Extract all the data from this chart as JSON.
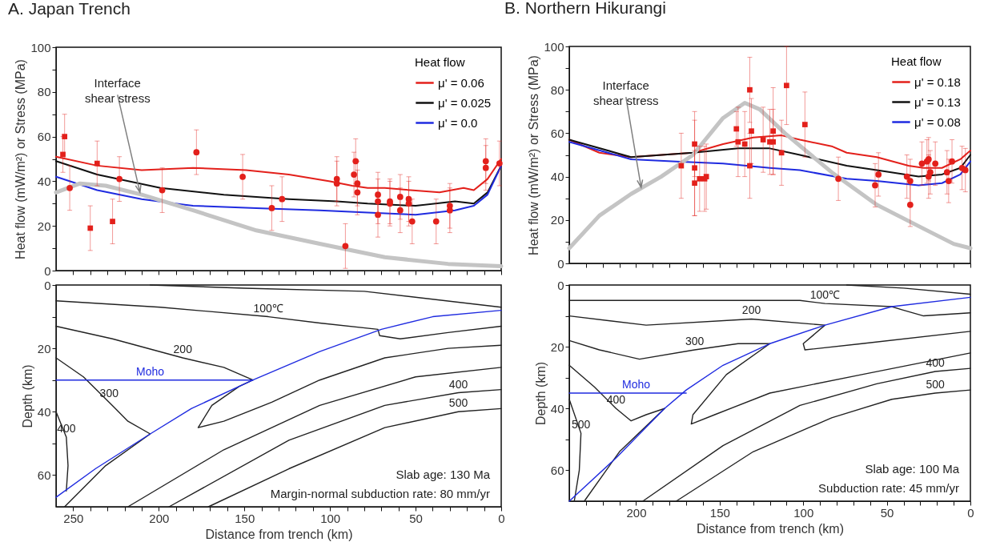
{
  "chart_data": [
    {
      "type": "line",
      "title": "A. Japan Trench",
      "ylabel": "Heat flow (mW/m²) or Stress (MPa)",
      "legend_title": "Heat flow",
      "legend": "top right",
      "tick_labels": "y",
      "xlim": [
        260,
        0
      ],
      "ylim": [
        0,
        100
      ],
      "xticks": [
        250,
        {
          "value": 240,
          "label": null
        },
        {
          "value": 230,
          "label": null
        },
        {
          "value": 220,
          "label": null
        },
        {
          "value": 210,
          "label": null
        },
        200,
        {
          "value": 190,
          "label": null
        },
        {
          "value": 180,
          "label": null
        },
        {
          "value": 170,
          "label": null
        },
        {
          "value": 160,
          "label": null
        },
        150,
        {
          "value": 140,
          "label": null
        },
        {
          "value": 130,
          "label": null
        },
        {
          "value": 120,
          "label": null
        },
        {
          "value": 110,
          "label": null
        },
        100,
        {
          "value": 90,
          "label": null
        },
        {
          "value": 80,
          "label": null
        },
        {
          "value": 70,
          "label": null
        },
        {
          "value": 60,
          "label": null
        },
        50,
        {
          "value": 40,
          "label": null
        },
        {
          "value": 30,
          "label": null
        },
        {
          "value": 20,
          "label": null
        },
        {
          "value": 10,
          "label": null
        },
        0
      ],
      "yticks": [
        0,
        {
          "value": 10,
          "label": null
        },
        20,
        {
          "value": 30,
          "label": null
        },
        40,
        {
          "value": 50,
          "label": null
        },
        60,
        {
          "value": 70,
          "label": null
        },
        80,
        {
          "value": 90,
          "label": null
        },
        100
      ],
      "annotations": [
        {
          "text": "Interface\nshear stress",
          "x": 211,
          "y": 35
        }
      ],
      "series": [
        {
          "name": "μ' = 0.06",
          "color": "#e3201b",
          "x": [
            260,
            236,
            210,
            180,
            149,
            124,
            100,
            87,
            78,
            68,
            53,
            36,
            22,
            16,
            8,
            0
          ],
          "values": [
            51,
            47,
            45,
            46,
            45,
            43,
            40,
            38,
            37,
            37,
            36,
            35,
            37,
            36,
            41,
            50
          ]
        },
        {
          "name": "μ' = 0.025",
          "color": "#111111",
          "x": [
            260,
            236,
            199,
            162,
            124,
            96,
            78,
            50,
            27,
            16,
            8,
            0
          ],
          "values": [
            49,
            43,
            37,
            34,
            32,
            31,
            30,
            29,
            31,
            30,
            35,
            47
          ]
        },
        {
          "name": "μ' = 0.0",
          "color": "#1f2be0",
          "x": [
            260,
            236,
            210,
            180,
            143,
            106,
            78,
            50,
            27,
            16,
            8,
            0
          ],
          "values": [
            42,
            36,
            32,
            29,
            28,
            27,
            26,
            25,
            27,
            29,
            34,
            47
          ]
        },
        {
          "color": "#c4c4c4",
          "x": [
            260,
            246,
            231,
            210,
            180,
            143,
            106,
            68,
            31,
            0
          ],
          "values": [
            35,
            39,
            38,
            34,
            27,
            18,
            12,
            6,
            3,
            2
          ]
        },
        {
          "type": "scatter",
          "marker": "square",
          "color": "#e3201b",
          "x": [
            256,
            255,
            240,
            236,
            227
          ],
          "values": [
            52,
            60,
            19,
            48,
            22
          ],
          "errors": [
            8,
            10,
            10,
            10,
            10
          ]
        },
        {
          "type": "scatter",
          "marker": "circle",
          "color": "#e3201b",
          "x": [
            252,
            223,
            198,
            178,
            151,
            134,
            128,
            96,
            96,
            91,
            86,
            85,
            84,
            84,
            72,
            72,
            72,
            65,
            65,
            59,
            59,
            54,
            54,
            52,
            38,
            30,
            30,
            9,
            9,
            1
          ],
          "values": [
            37,
            41,
            36,
            53,
            42,
            28,
            32,
            41,
            39,
            11,
            43,
            49,
            39,
            35,
            34,
            31,
            25,
            31,
            30,
            33,
            27,
            32,
            30,
            22,
            22,
            29,
            27,
            49,
            46,
            48
          ],
          "errors": [
            10,
            10,
            10,
            10,
            10,
            10,
            10,
            10,
            10,
            10,
            10,
            10,
            10,
            10,
            10,
            10,
            10,
            10,
            10,
            10,
            10,
            10,
            10,
            10,
            10,
            10,
            10,
            10,
            10,
            10
          ]
        }
      ]
    },
    {
      "type": "line",
      "title": "B. Northern Hikurangi",
      "ylabel": "Heat flow (mW/m²) or Stress (MPa)",
      "legend_title": "Heat flow",
      "legend": "top right",
      "tick_labels": "y",
      "xlim": [
        240,
        0
      ],
      "ylim": [
        0,
        100
      ],
      "xticks": [
        {
          "value": 230,
          "label": null
        },
        {
          "value": 220,
          "label": null
        },
        {
          "value": 210,
          "label": null
        },
        200,
        {
          "value": 190,
          "label": null
        },
        {
          "value": 180,
          "label": null
        },
        {
          "value": 170,
          "label": null
        },
        {
          "value": 160,
          "label": null
        },
        150,
        {
          "value": 140,
          "label": null
        },
        {
          "value": 130,
          "label": null
        },
        {
          "value": 120,
          "label": null
        },
        {
          "value": 110,
          "label": null
        },
        100,
        {
          "value": 90,
          "label": null
        },
        {
          "value": 80,
          "label": null
        },
        {
          "value": 70,
          "label": null
        },
        {
          "value": 60,
          "label": null
        },
        50,
        {
          "value": 40,
          "label": null
        },
        {
          "value": 30,
          "label": null
        },
        {
          "value": 20,
          "label": null
        },
        {
          "value": 10,
          "label": null
        },
        0
      ],
      "yticks": [
        0,
        {
          "value": 10,
          "label": null
        },
        20,
        {
          "value": 30,
          "label": null
        },
        40,
        {
          "value": 50,
          "label": null
        },
        60,
        {
          "value": 70,
          "label": null
        },
        80,
        {
          "value": 90,
          "label": null
        },
        100
      ],
      "annotations": [
        {
          "text": "Interface\nshear stress",
          "x": 197,
          "y": 35
        }
      ],
      "series": [
        {
          "name": "μ' = 0.18",
          "color": "#e3201b",
          "x": [
            240,
            222,
            203,
            185,
            166,
            148,
            130,
            113,
            102,
            83,
            74,
            56,
            37,
            28,
            17,
            6,
            0
          ],
          "values": [
            57,
            51,
            49,
            50,
            51,
            55,
            58,
            59,
            57,
            54,
            51,
            49,
            45,
            44,
            44,
            48,
            52
          ]
        },
        {
          "name": "μ' = 0.13",
          "color": "#111111",
          "x": [
            240,
            203,
            166,
            139,
            120,
            102,
            74,
            56,
            31,
            17,
            6,
            0
          ],
          "values": [
            57,
            49,
            51,
            53,
            53,
            50,
            45,
            43,
            40,
            41,
            44,
            50
          ]
        },
        {
          "name": "μ' = 0.08",
          "color": "#1f2be0",
          "x": [
            240,
            203,
            176,
            148,
            120,
            102,
            74,
            56,
            31,
            17,
            6,
            0
          ],
          "values": [
            56,
            48,
            47,
            46,
            44,
            43,
            39,
            38,
            36,
            37,
            41,
            47
          ]
        },
        {
          "color": "#c4c4c4",
          "x": [
            240,
            222,
            203,
            185,
            166,
            148,
            135,
            126,
            111,
            83,
            56,
            28,
            10,
            0
          ],
          "values": [
            7,
            22,
            32,
            40,
            50,
            67,
            74,
            71,
            60,
            42,
            27,
            16,
            9,
            7
          ]
        },
        {
          "type": "scatter",
          "marker": "square",
          "color": "#e3201b",
          "x": [
            173,
            165,
            165,
            165,
            162,
            159,
            158,
            140,
            139,
            135,
            132,
            132,
            131,
            124,
            120,
            118,
            118,
            113,
            110,
            99
          ],
          "values": [
            45,
            55,
            44,
            37,
            39,
            39,
            40,
            62,
            56,
            55,
            80,
            45,
            61,
            57,
            56,
            56,
            61,
            51,
            82,
            64
          ],
          "errors": [
            15,
            15,
            22,
            15,
            15,
            15,
            15,
            8,
            16,
            15,
            15,
            15,
            15,
            15,
            15,
            15,
            20,
            15,
            18,
            15
          ]
        },
        {
          "type": "scatter",
          "marker": "circle",
          "color": "#e3201b",
          "x": [
            79,
            57,
            55,
            38,
            36,
            36,
            29,
            26,
            25,
            25,
            24,
            21,
            14,
            13,
            11,
            5,
            3
          ],
          "values": [
            39,
            36,
            41,
            40,
            38,
            27,
            46,
            47,
            48,
            40,
            42,
            46,
            42,
            38,
            47,
            44,
            43
          ],
          "errors": [
            10,
            10,
            10,
            10,
            10,
            10,
            10,
            10,
            10,
            10,
            10,
            10,
            10,
            10,
            10,
            10,
            10
          ]
        }
      ]
    },
    {
      "type": "line",
      "xlabel": "Distance from trench (km)",
      "ylabel": "Depth (km)",
      "xlim": [
        260,
        0
      ],
      "ylim": [
        70,
        0
      ],
      "xticks": [
        250,
        {
          "value": 240,
          "label": null
        },
        {
          "value": 230,
          "label": null
        },
        {
          "value": 220,
          "label": null
        },
        {
          "value": 210,
          "label": null
        },
        200,
        {
          "value": 190,
          "label": null
        },
        {
          "value": 180,
          "label": null
        },
        {
          "value": 170,
          "label": null
        },
        {
          "value": 160,
          "label": null
        },
        150,
        {
          "value": 140,
          "label": null
        },
        {
          "value": 130,
          "label": null
        },
        {
          "value": 120,
          "label": null
        },
        {
          "value": 110,
          "label": null
        },
        100,
        {
          "value": 90,
          "label": null
        },
        {
          "value": 80,
          "label": null
        },
        {
          "value": 70,
          "label": null
        },
        {
          "value": 60,
          "label": null
        },
        50,
        {
          "value": 40,
          "label": null
        },
        {
          "value": 30,
          "label": null
        },
        {
          "value": 20,
          "label": null
        },
        {
          "value": 10,
          "label": null
        },
        0
      ],
      "yticks": [
        0,
        {
          "value": 10,
          "label": null
        },
        20,
        {
          "value": 30,
          "label": null
        },
        40,
        {
          "value": 50,
          "label": null
        },
        60
      ],
      "annotations": [
        "Slab age: 130 Ma",
        "Margin-normal subduction rate: 80 mm/yr"
      ],
      "series": [
        {
          "color": "#222222",
          "x": [
            205,
            150,
            80,
            0
          ],
          "values": [
            0,
            1,
            2,
            7
          ]
        },
        {
          "name": "100℃",
          "color": "#222222",
          "x": [
            260,
            199,
            136,
            106,
            72,
            71,
            59,
            31,
            0
          ],
          "values": [
            5,
            7,
            10,
            12,
            14,
            16,
            17,
            15,
            13
          ]
        },
        {
          "name": "200",
          "color": "#222222",
          "x": [
            260,
            227,
            186,
            162,
            145,
            153,
            169,
            177,
            162,
            134,
            106,
            68,
            31,
            0
          ],
          "values": [
            13,
            17,
            23,
            26,
            30,
            32,
            38,
            45,
            43,
            37,
            30,
            23,
            20,
            19
          ]
        },
        {
          "name": "300",
          "color": "#222222",
          "x": [
            260,
            244,
            229,
            218,
            205,
            231,
            255
          ],
          "values": [
            23,
            29,
            37,
            43,
            47,
            57,
            70
          ]
        },
        {
          "color": "#222222",
          "x": [
            218,
            162,
            106,
            50,
            0
          ],
          "values": [
            70,
            52,
            38,
            29,
            26
          ]
        },
        {
          "name": "400",
          "color": "#222222",
          "x": [
            194,
            124,
            68,
            25,
            0
          ],
          "values": [
            70,
            49,
            38,
            34,
            33
          ]
        },
        {
          "name": "500",
          "color": "#222222",
          "x": [
            171,
            124,
            68,
            25,
            0
          ],
          "values": [
            70,
            58,
            45,
            40,
            39
          ]
        },
        {
          "name": "400",
          "color": "#222222",
          "x": [
            260,
            254,
            253,
            254
          ],
          "values": [
            40,
            48,
            57,
            65
          ]
        },
        {
          "color": "#1f2be0",
          "x": [
            260,
            237,
            205,
            181,
            145,
            106,
            70,
            40,
            0
          ],
          "values": [
            67,
            58,
            47,
            39,
            30,
            21,
            14,
            10,
            8
          ]
        },
        {
          "name": "Moho",
          "color": "#1f2be0",
          "x": [
            260,
            205,
            145
          ],
          "values": [
            30,
            30,
            30
          ]
        }
      ]
    },
    {
      "type": "line",
      "xlabel": "Distance from trench (km)",
      "ylabel": "Depth (km)",
      "xlim": [
        240,
        0
      ],
      "ylim": [
        70,
        0
      ],
      "xticks": [
        {
          "value": 230,
          "label": null
        },
        {
          "value": 220,
          "label": null
        },
        {
          "value": 210,
          "label": null
        },
        200,
        {
          "value": 190,
          "label": null
        },
        {
          "value": 180,
          "label": null
        },
        {
          "value": 170,
          "label": null
        },
        {
          "value": 160,
          "label": null
        },
        150,
        {
          "value": 140,
          "label": null
        },
        {
          "value": 130,
          "label": null
        },
        {
          "value": 120,
          "label": null
        },
        {
          "value": 110,
          "label": null
        },
        100,
        {
          "value": 90,
          "label": null
        },
        {
          "value": 80,
          "label": null
        },
        {
          "value": 70,
          "label": null
        },
        {
          "value": 60,
          "label": null
        },
        50,
        {
          "value": 40,
          "label": null
        },
        {
          "value": 30,
          "label": null
        },
        {
          "value": 20,
          "label": null
        },
        {
          "value": 10,
          "label": null
        },
        0
      ],
      "yticks": [
        0,
        {
          "value": 10,
          "label": null
        },
        20,
        {
          "value": 30,
          "label": null
        },
        40,
        {
          "value": 50,
          "label": null
        },
        60
      ],
      "annotations": [
        "Slab age: 100 Ma",
        "Subduction rate: 45 mm/yr"
      ],
      "series": [
        {
          "color": "#222222",
          "x": [
            74,
            40,
            0
          ],
          "values": [
            0,
            1,
            3
          ]
        },
        {
          "name": "100℃",
          "color": "#222222",
          "x": [
            240,
            176,
            102,
            87,
            47,
            41,
            28,
            0
          ],
          "values": [
            5,
            5,
            5,
            6,
            7,
            8,
            10,
            9
          ]
        },
        {
          "name": "200",
          "color": "#222222",
          "x": [
            240,
            194,
            131,
            87,
            100,
            99,
            65,
            0
          ],
          "values": [
            10,
            13,
            11,
            13,
            19,
            21,
            19,
            15
          ]
        },
        {
          "name": "300",
          "color": "#222222",
          "x": [
            240,
            222,
            198,
            165,
            139,
            120,
            146,
            166,
            167,
            153,
            120,
            65,
            0
          ],
          "values": [
            18,
            21,
            24,
            21,
            19,
            19,
            29,
            42,
            45,
            42,
            35,
            29,
            22
          ]
        },
        {
          "name": "400",
          "color": "#222222",
          "x": [
            240,
            225,
            212,
            203,
            194,
            183
          ],
          "values": [
            26,
            33,
            40,
            44,
            42,
            40
          ]
        },
        {
          "color": "#222222",
          "x": [
            183,
            210,
            231
          ],
          "values": [
            40,
            54,
            70
          ]
        },
        {
          "name": "500",
          "color": "#222222",
          "x": [
            240,
            233,
            234,
            237
          ],
          "values": [
            37,
            48,
            60,
            70
          ]
        },
        {
          "name": "400",
          "color": "#222222",
          "x": [
            196,
            148,
            102,
            56,
            21,
            0
          ],
          "values": [
            70,
            52,
            39,
            32,
            28,
            27
          ]
        },
        {
          "name": "500",
          "color": "#222222",
          "x": [
            176,
            130,
            83,
            47,
            21,
            0
          ],
          "values": [
            70,
            54,
            43,
            37,
            35,
            34
          ]
        },
        {
          "color": "#1f2be0",
          "x": [
            240,
            212,
            183,
            170,
            148,
            120,
            87,
            47,
            0
          ],
          "values": [
            70,
            56,
            40,
            34,
            26,
            19,
            13,
            7,
            4
          ]
        },
        {
          "name": "Moho",
          "color": "#1f2be0",
          "x": [
            240,
            200,
            170
          ],
          "values": [
            35,
            35,
            35
          ]
        }
      ]
    }
  ]
}
